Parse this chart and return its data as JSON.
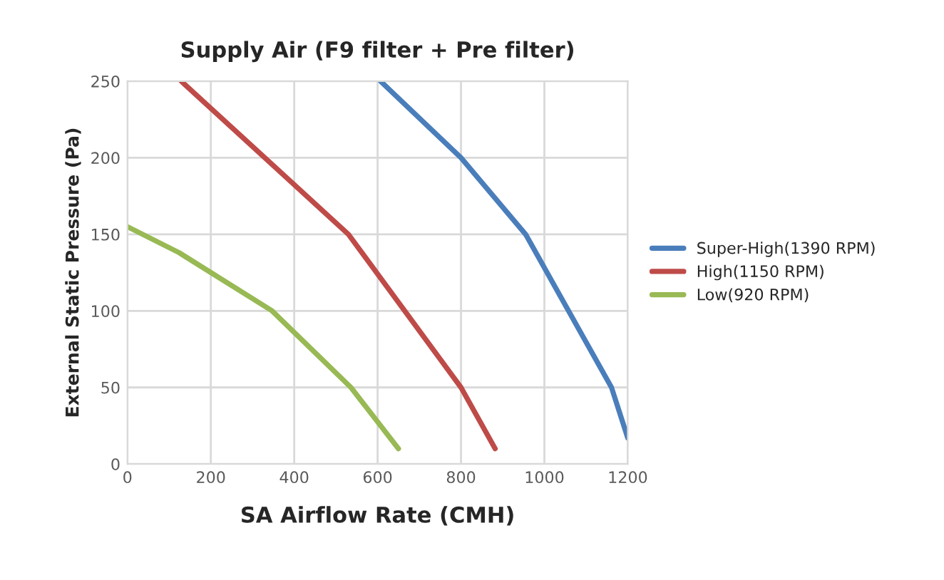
{
  "chart_data": {
    "type": "line",
    "title": "Supply Air (F9 filter + Pre filter)",
    "xlabel": "SA Airflow Rate (CMH)",
    "ylabel": "External Static Pressure (Pa)",
    "xlim": [
      0,
      1200
    ],
    "xticks": [
      0,
      200,
      400,
      600,
      800,
      1000,
      1200
    ],
    "ylim": [
      0,
      250
    ],
    "yticks": [
      0,
      50,
      100,
      150,
      200,
      250
    ],
    "grid": true,
    "legend": "right",
    "marker": "none",
    "line_style": "solid",
    "series": [
      {
        "name": "Super-High(1390 RPM)",
        "color": "#4a7ebb",
        "x": [
          607,
          800,
          955,
          1161,
          1200
        ],
        "values": [
          250,
          200,
          150,
          50,
          17
        ]
      },
      {
        "name": "High(1150 RPM)",
        "color": "#be4b48",
        "x": [
          129,
          530,
          800,
          882
        ],
        "values": [
          250,
          150,
          50,
          10
        ]
      },
      {
        "name": "Low(920 RPM)",
        "color": "#98b954",
        "x": [
          0,
          124,
          347,
          536,
          650
        ],
        "values": [
          155,
          138,
          100,
          50,
          10
        ]
      }
    ]
  }
}
